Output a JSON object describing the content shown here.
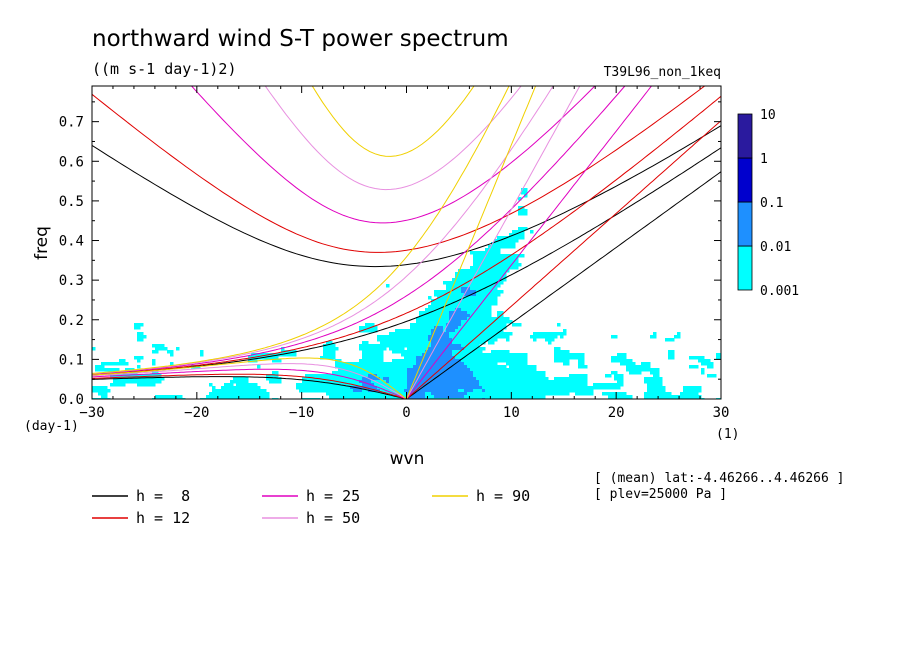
{
  "chart_data": {
    "type": "heatmap",
    "title": "northward wind S-T power spectrum",
    "subtitle": "((m s-1 day-1)2)",
    "run_label": "T39L96_non_1keq",
    "xlabel": "wvn",
    "ylabel": "freq",
    "x_unit": "(1)",
    "y_unit": "(day-1)",
    "xlim": [
      -30,
      30
    ],
    "ylim": [
      0,
      0.79
    ],
    "x_ticks": [
      -30,
      -20,
      -10,
      0,
      10,
      20,
      30
    ],
    "y_ticks": [
      0.0,
      0.1,
      0.2,
      0.3,
      0.4,
      0.5,
      0.6,
      0.7
    ],
    "colorbar": {
      "levels": [
        "0.001",
        "0.01",
        "0.1",
        "1",
        "10"
      ],
      "colors": [
        "#00ffff",
        "#1e90ff",
        "#0000cd",
        "#2a1a9e"
      ]
    },
    "info_lines": [
      "[ (mean) lat:-4.46266..4.46266 ]",
      "[ plev=25000 Pa ]"
    ],
    "series": [
      {
        "name": "h =  8",
        "h": 8,
        "color": "#000000"
      },
      {
        "name": "h = 12",
        "h": 12,
        "color": "#e00000"
      },
      {
        "name": "h = 25",
        "h": 25,
        "color": "#e000c0"
      },
      {
        "name": "h = 50",
        "h": 50,
        "color": "#e890e0"
      },
      {
        "name": "h = 90",
        "h": 90,
        "color": "#f0d000"
      }
    ],
    "grid": false,
    "legend_position": "bottom"
  }
}
